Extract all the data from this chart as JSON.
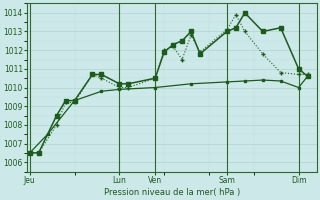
{
  "bg_color": "#cde8e8",
  "grid_color_major": "#aacccc",
  "grid_color_minor": "#c0dddd",
  "line_color": "#1a5c1a",
  "ylabel_text": "Pression niveau de la mer( hPa )",
  "ylim": [
    1005.5,
    1014.5
  ],
  "yticks": [
    1006,
    1007,
    1008,
    1009,
    1010,
    1011,
    1012,
    1013,
    1014
  ],
  "x_tick_labels": [
    "Jeu",
    "Lun",
    "Ven",
    "Sam",
    "Dim"
  ],
  "x_tick_positions": [
    0,
    10,
    14,
    22,
    30
  ],
  "xlim": [
    -0.3,
    32
  ],
  "vline_positions": [
    0,
    10,
    14,
    22,
    30
  ],
  "series1_x": [
    0,
    1,
    3,
    4,
    5,
    7,
    8,
    10,
    11,
    14,
    15,
    16,
    17,
    18,
    19,
    22,
    23,
    24,
    26,
    28,
    30,
    31
  ],
  "series1_y": [
    1006.5,
    1006.5,
    1008.5,
    1009.3,
    1009.3,
    1010.7,
    1010.7,
    1010.2,
    1010.2,
    1010.5,
    1011.9,
    1012.3,
    1012.5,
    1013.0,
    1011.8,
    1013.0,
    1013.2,
    1014.0,
    1013.0,
    1013.2,
    1011.0,
    1010.6
  ],
  "series2_x": [
    0,
    1,
    3,
    4,
    5,
    7,
    8,
    10,
    11,
    14,
    15,
    16,
    17,
    18,
    19,
    22,
    23,
    24,
    26,
    28,
    30,
    31
  ],
  "series2_y": [
    1006.5,
    1006.5,
    1008.0,
    1009.2,
    1009.2,
    1010.7,
    1010.5,
    1010.0,
    1010.0,
    1010.5,
    1012.0,
    1012.2,
    1011.5,
    1012.8,
    1011.9,
    1013.1,
    1013.9,
    1013.0,
    1011.8,
    1010.8,
    1010.7,
    1010.7
  ],
  "series3_x": [
    0,
    2,
    5,
    8,
    10,
    14,
    18,
    22,
    24,
    26,
    28,
    30,
    31
  ],
  "series3_y": [
    1006.5,
    1007.5,
    1009.3,
    1009.8,
    1009.9,
    1010.0,
    1010.2,
    1010.3,
    1010.35,
    1010.4,
    1010.35,
    1010.0,
    1010.6
  ]
}
